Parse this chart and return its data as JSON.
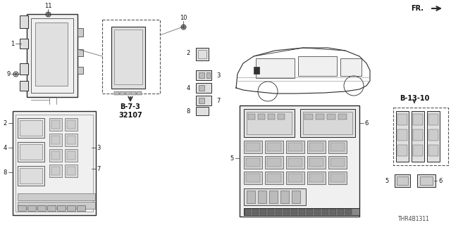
{
  "bg_color": "#ffffff",
  "part_number": "THR4B1311",
  "b73_text": "B-7-3\n32107",
  "b1310_text": "B-13-10",
  "fr_text": "FR.",
  "line_color": "#2a2a2a",
  "dash_color": "#555555",
  "part_fill": "#e8e8e8",
  "part_fill2": "#d0d0d0",
  "part_fill3": "#f2f2f2",
  "dark_fill": "#888888",
  "mid_fill": "#bbbbbb"
}
